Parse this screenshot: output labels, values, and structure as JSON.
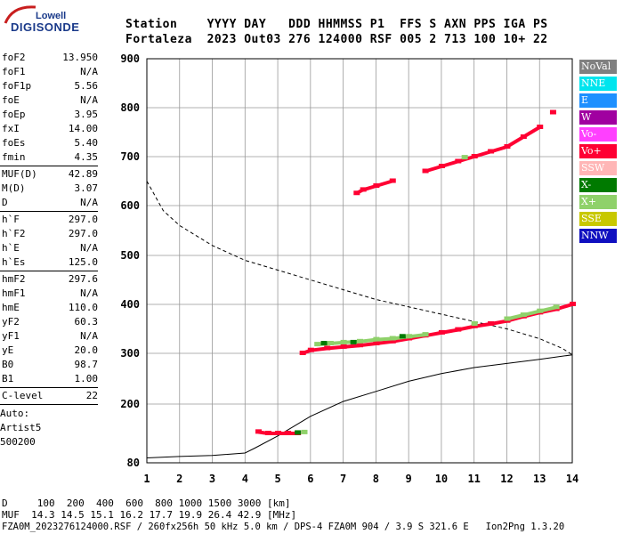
{
  "logo": {
    "brand": "Lowell",
    "name": "DIGISONDE"
  },
  "header": {
    "line1": "Station    YYYY DAY   DDD HHMMSS P1  FFS S AXN PPS IGA PS",
    "line2": "Fortaleza  2023 Out03 276 124000 RSF 005 2 713 100 10+ 22"
  },
  "params_group1": [
    {
      "k": "foF2",
      "v": "13.950"
    },
    {
      "k": "foF1",
      "v": "N/A"
    },
    {
      "k": "foF1p",
      "v": "5.56"
    },
    {
      "k": "foE",
      "v": "N/A"
    },
    {
      "k": "foEp",
      "v": "3.95"
    },
    {
      "k": "fxI",
      "v": "14.00"
    },
    {
      "k": "foEs",
      "v": "5.40"
    },
    {
      "k": "fmin",
      "v": "4.35"
    }
  ],
  "params_group2": [
    {
      "k": "MUF(D)",
      "v": "42.89"
    },
    {
      "k": "M(D)",
      "v": "3.07"
    },
    {
      "k": "D",
      "v": "N/A"
    }
  ],
  "params_group3": [
    {
      "k": "h`F",
      "v": "297.0"
    },
    {
      "k": "h`F2",
      "v": "297.0"
    },
    {
      "k": "h`E",
      "v": "N/A"
    },
    {
      "k": "h`Es",
      "v": "125.0"
    }
  ],
  "params_group4": [
    {
      "k": "hmF2",
      "v": "297.6"
    },
    {
      "k": "hmF1",
      "v": "N/A"
    },
    {
      "k": "hmE",
      "v": "110.0"
    },
    {
      "k": "yF2",
      "v": "60.3"
    },
    {
      "k": "yF1",
      "v": "N/A"
    },
    {
      "k": "yE",
      "v": "20.0"
    },
    {
      "k": "B0",
      "v": "98.7"
    },
    {
      "k": "B1",
      "v": "1.00"
    }
  ],
  "params_group5": [
    {
      "k": "C-level",
      "v": "22"
    }
  ],
  "auto": {
    "line1": "Auto:",
    "line2": "Artist5",
    "line3": "500200"
  },
  "legend": [
    {
      "label": "NoVal",
      "color": "#808080"
    },
    {
      "label": "NNE",
      "color": "#00e5ee"
    },
    {
      "label": "E",
      "color": "#1e90ff"
    },
    {
      "label": "W",
      "color": "#a000a0"
    },
    {
      "label": "Vo-",
      "color": "#ff40ff"
    },
    {
      "label": "Vo+",
      "color": "#ff0033"
    },
    {
      "label": "SSW",
      "color": "#ffb6b6"
    },
    {
      "label": "X-",
      "color": "#007a00"
    },
    {
      "label": "X+",
      "color": "#8fd16a"
    },
    {
      "label": "SSE",
      "color": "#c8c800"
    },
    {
      "label": "NNW",
      "color": "#1010c0"
    }
  ],
  "footer": {
    "line1": "D     100  200  400  600  800 1000 1500 3000 [km]",
    "line2": "MUF  14.3 14.5 15.1 16.2 17.7 19.9 26.4 42.9 [MHz]",
    "line3": "FZA0M_2023276124000.RSF / 260fx256h 50 kHz 5.0 km / DPS-4 FZA0M 904 / 3.9 S 321.6 E   Ion2Png 1.3.20"
  },
  "chart_data": {
    "type": "scatter",
    "xlim": [
      1,
      14
    ],
    "ylim": [
      80,
      900
    ],
    "xticks": [
      1,
      2,
      3,
      4,
      5,
      6,
      7,
      8,
      9,
      10,
      11,
      12,
      13,
      14
    ],
    "yticks": [
      80,
      200,
      300,
      400,
      500,
      600,
      700,
      800,
      900
    ],
    "grid": true,
    "series": [
      {
        "name": "Vo+",
        "color": "#ff0033",
        "points": [
          [
            5.75,
            300
          ],
          [
            6.0,
            306
          ],
          [
            6.5,
            310
          ],
          [
            7.0,
            313
          ],
          [
            7.5,
            316
          ],
          [
            8.0,
            320
          ],
          [
            8.5,
            324
          ],
          [
            9.0,
            330
          ],
          [
            9.5,
            336
          ],
          [
            10.0,
            342
          ],
          [
            10.5,
            348
          ],
          [
            11.0,
            355
          ],
          [
            11.5,
            360
          ],
          [
            12.0,
            366
          ],
          [
            12.5,
            375
          ],
          [
            13.0,
            383
          ],
          [
            13.5,
            390
          ],
          [
            14.0,
            400
          ],
          [
            7.4,
            625
          ],
          [
            7.6,
            632
          ],
          [
            8.0,
            640
          ],
          [
            8.5,
            650
          ],
          [
            9.5,
            670
          ],
          [
            10.0,
            680
          ],
          [
            10.5,
            690
          ],
          [
            11.0,
            700
          ],
          [
            11.5,
            710
          ],
          [
            12.0,
            720
          ],
          [
            12.5,
            740
          ],
          [
            13.0,
            760
          ],
          [
            13.4,
            790
          ],
          [
            4.4,
            143
          ],
          [
            4.7,
            140
          ],
          [
            5.0,
            140
          ],
          [
            5.3,
            140
          ],
          [
            5.6,
            140
          ]
        ]
      },
      {
        "name": "X+",
        "color": "#8fd16a",
        "points": [
          [
            6.2,
            318
          ],
          [
            6.6,
            320
          ],
          [
            7.0,
            322
          ],
          [
            7.5,
            324
          ],
          [
            8.0,
            328
          ],
          [
            8.5,
            330
          ],
          [
            9.0,
            334
          ],
          [
            9.5,
            338
          ],
          [
            11.0,
            360
          ],
          [
            12.0,
            370
          ],
          [
            12.5,
            378
          ],
          [
            13.0,
            386
          ],
          [
            13.5,
            394
          ],
          [
            5.8,
            142
          ],
          [
            10.7,
            698
          ]
        ]
      },
      {
        "name": "X-",
        "color": "#007a00",
        "points": [
          [
            6.4,
            320
          ],
          [
            7.3,
            322
          ],
          [
            8.8,
            334
          ],
          [
            5.6,
            141
          ]
        ]
      }
    ],
    "curves": [
      {
        "style": "solid",
        "points": [
          [
            1.0,
            90
          ],
          [
            2.0,
            93
          ],
          [
            3.0,
            95
          ],
          [
            4.0,
            100
          ],
          [
            4.3,
            110
          ],
          [
            5.0,
            135
          ],
          [
            5.5,
            155
          ],
          [
            6.0,
            175
          ],
          [
            7.0,
            205
          ],
          [
            8.0,
            225
          ],
          [
            9.0,
            245
          ],
          [
            10.0,
            260
          ],
          [
            11.0,
            272
          ],
          [
            12.0,
            280
          ],
          [
            13.0,
            288
          ],
          [
            14.0,
            297
          ]
        ]
      },
      {
        "style": "dashed",
        "points": [
          [
            1.0,
            650
          ],
          [
            1.5,
            590
          ],
          [
            2.0,
            560
          ],
          [
            3.0,
            520
          ],
          [
            4.0,
            490
          ],
          [
            5.0,
            470
          ],
          [
            6.0,
            450
          ],
          [
            7.0,
            430
          ],
          [
            8.0,
            410
          ],
          [
            9.0,
            395
          ],
          [
            10.0,
            380
          ],
          [
            11.0,
            365
          ],
          [
            12.0,
            350
          ],
          [
            13.0,
            330
          ],
          [
            13.7,
            310
          ],
          [
            14.0,
            297
          ]
        ]
      }
    ]
  }
}
